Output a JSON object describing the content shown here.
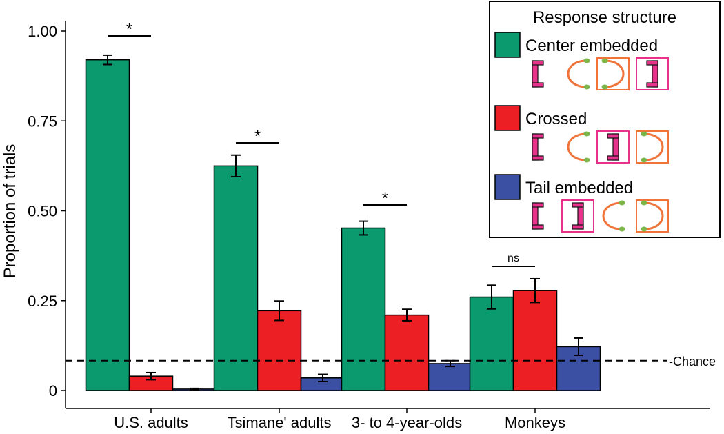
{
  "colors": {
    "center_embedded": "#0b9a6d",
    "crossed": "#ec1f24",
    "tail_embedded": "#3b4fa3",
    "pink": "#e8318a",
    "orange": "#f0743a",
    "dot": "#7ab648"
  },
  "chart_data": {
    "type": "bar",
    "ylabel": "Proportion of trials",
    "ylim": [
      0,
      1.05
    ],
    "yticks": [
      0,
      0.25,
      0.5,
      0.75,
      1.0
    ],
    "ytick_labels": [
      "0",
      "0.25",
      "0.50",
      "0.75",
      "1.00"
    ],
    "categories": [
      "U.S. adults",
      "Tsimane' adults",
      "3- to 4-year-olds",
      "Monkeys"
    ],
    "series": [
      {
        "name": "Center embedded",
        "values": [
          0.92,
          0.625,
          0.452,
          0.26
        ],
        "errors": [
          0.013,
          0.03,
          0.019,
          0.033
        ]
      },
      {
        "name": "Crossed",
        "values": [
          0.04,
          0.222,
          0.21,
          0.278
        ],
        "errors": [
          0.01,
          0.027,
          0.016,
          0.033
        ]
      },
      {
        "name": "Tail embedded",
        "values": [
          0.004,
          0.035,
          0.075,
          0.122
        ],
        "errors": [
          0.002,
          0.01,
          0.008,
          0.024
        ]
      }
    ],
    "chance_line": {
      "value": 0.083,
      "label": "-Chance"
    },
    "significance": [
      {
        "category": 0,
        "label": "*"
      },
      {
        "category": 1,
        "label": "*"
      },
      {
        "category": 2,
        "label": "*"
      },
      {
        "category": 3,
        "label": "ns"
      }
    ],
    "legend": {
      "title": "Response structure",
      "position": "top-right",
      "entries": [
        {
          "label": "Center embedded",
          "sequence": [
            "bracket",
            "arc",
            "arc-boxed",
            "bracket-boxed"
          ]
        },
        {
          "label": "Crossed",
          "sequence": [
            "bracket",
            "arc",
            "bracket-boxed",
            "arc-boxed"
          ]
        },
        {
          "label": "Tail embedded",
          "sequence": [
            "bracket",
            "bracket-boxed",
            "arc",
            "arc-boxed"
          ]
        }
      ]
    }
  }
}
